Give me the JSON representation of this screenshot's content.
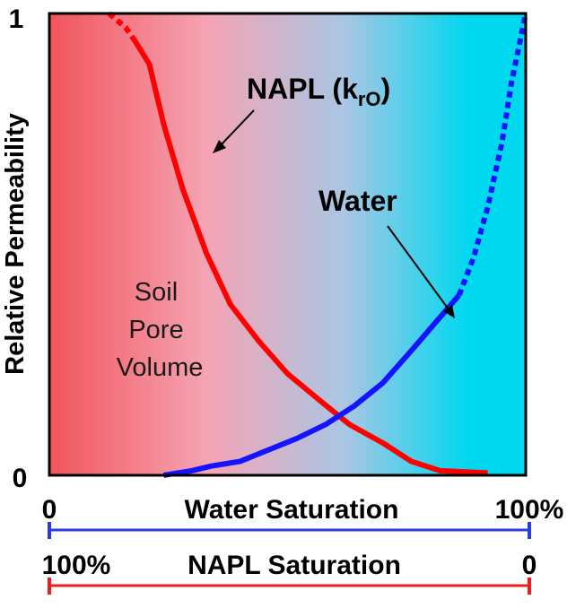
{
  "chart_data": {
    "type": "line",
    "ylabel": "Relative Permeability",
    "yticks": [
      "0",
      "1"
    ],
    "ylim": [
      0,
      1
    ],
    "xlim": [
      0,
      100
    ],
    "grid": false,
    "background_gradient": [
      "#f2545b",
      "#f5a4b4",
      "#a9c6e4",
      "#00d8f0"
    ],
    "series": [
      {
        "name": "NAPL (kro)",
        "color": "#ff0000",
        "dashed_points": [
          [
            12.5,
            1.0
          ],
          [
            16,
            0.97
          ],
          [
            18,
            0.94
          ]
        ],
        "points": [
          [
            18,
            0.94
          ],
          [
            21,
            0.89
          ],
          [
            24,
            0.76
          ],
          [
            28,
            0.62
          ],
          [
            33,
            0.48
          ],
          [
            38,
            0.37
          ],
          [
            44,
            0.29
          ],
          [
            50,
            0.22
          ],
          [
            57,
            0.16
          ],
          [
            63,
            0.11
          ],
          [
            70,
            0.07
          ],
          [
            76,
            0.03
          ],
          [
            82,
            0.01
          ],
          [
            92,
            0.005
          ]
        ]
      },
      {
        "name": "Water",
        "color": "#1414ff",
        "points": [
          [
            24,
            0.0
          ],
          [
            30,
            0.01
          ],
          [
            34,
            0.02
          ],
          [
            40,
            0.03
          ],
          [
            46,
            0.055
          ],
          [
            52,
            0.08
          ],
          [
            58,
            0.11
          ],
          [
            64,
            0.15
          ],
          [
            70,
            0.2
          ],
          [
            76,
            0.27
          ],
          [
            81,
            0.33
          ],
          [
            86,
            0.39
          ]
        ],
        "dashed_points": [
          [
            86,
            0.39
          ],
          [
            89,
            0.47
          ],
          [
            92,
            0.58
          ],
          [
            95,
            0.72
          ],
          [
            97,
            0.85
          ],
          [
            100,
            1.0
          ]
        ]
      }
    ],
    "annotations": {
      "napl_prefix": "NAPL (k",
      "napl_subscript": "rO",
      "napl_suffix": ")",
      "water": "Water",
      "soil_lines": [
        "Soil",
        "Pore",
        "Volume"
      ]
    },
    "axes_below": {
      "water": {
        "label": "Water Saturation",
        "left": "0",
        "right": "100%",
        "color": "#2a3ce0"
      },
      "napl": {
        "label": "NAPL Saturation",
        "left": "100%",
        "right": "0",
        "color": "#ee1c1c"
      }
    }
  }
}
